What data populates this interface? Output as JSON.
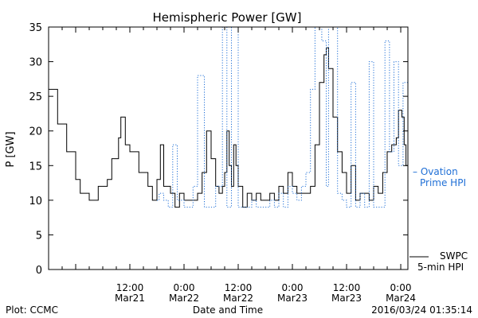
{
  "colors": {
    "swpc": "#000000",
    "ovation": "#1f6fd6",
    "axis": "#000000"
  },
  "footer": {
    "left": "Plot: CCMC",
    "center": "Date and Time",
    "right": "2016/03/24 01:35:14"
  },
  "chart_data": {
    "type": "line",
    "title": "Hemispheric Power [GW]",
    "ylabel": "P [GW]",
    "xlabel": "Date and Time",
    "xlim": [
      "2016-03-20T18:00",
      "2016-03-24T01:35"
    ],
    "ylim": [
      0,
      35
    ],
    "y_ticks": [
      0,
      5,
      10,
      15,
      20,
      25,
      30,
      35
    ],
    "x_tick_labels": [
      {
        "x": "2016-03-21T12:00",
        "line1": "12:00",
        "line2": "Mar21"
      },
      {
        "x": "2016-03-22T00:00",
        "line1": "0:00",
        "line2": "Mar22"
      },
      {
        "x": "2016-03-22T12:00",
        "line1": "12:00",
        "line2": "Mar22"
      },
      {
        "x": "2016-03-23T00:00",
        "line1": "0:00",
        "line2": "Mar23"
      },
      {
        "x": "2016-03-23T12:00",
        "line1": "12:00",
        "line2": "Mar23"
      },
      {
        "x": "2016-03-24T00:00",
        "line1": "0:00",
        "line2": "Mar24"
      }
    ],
    "series": [
      {
        "name": "SWPC 5-min HPI",
        "label_lines": [
          "SWPC",
          "5-min HPI"
        ],
        "style": "solid",
        "points": [
          [
            "2016-03-20T18:00",
            26
          ],
          [
            "2016-03-20T20:00",
            21
          ],
          [
            "2016-03-20T22:00",
            17
          ],
          [
            "2016-03-21T00:00",
            13
          ],
          [
            "2016-03-21T01:00",
            11
          ],
          [
            "2016-03-21T03:00",
            10
          ],
          [
            "2016-03-21T05:00",
            12
          ],
          [
            "2016-03-21T07:00",
            13
          ],
          [
            "2016-03-21T08:00",
            16
          ],
          [
            "2016-03-21T09:30",
            19
          ],
          [
            "2016-03-21T10:00",
            22
          ],
          [
            "2016-03-21T11:00",
            18
          ],
          [
            "2016-03-21T12:00",
            17
          ],
          [
            "2016-03-21T14:00",
            14
          ],
          [
            "2016-03-21T16:00",
            12
          ],
          [
            "2016-03-21T17:00",
            10
          ],
          [
            "2016-03-21T18:00",
            13
          ],
          [
            "2016-03-21T18:45",
            18
          ],
          [
            "2016-03-21T19:30",
            12
          ],
          [
            "2016-03-21T21:00",
            11
          ],
          [
            "2016-03-21T22:00",
            9
          ],
          [
            "2016-03-21T23:00",
            11
          ],
          [
            "2016-03-22T00:00",
            10
          ],
          [
            "2016-03-22T01:00",
            10
          ],
          [
            "2016-03-22T02:00",
            10
          ],
          [
            "2016-03-22T03:00",
            11
          ],
          [
            "2016-03-22T04:00",
            14
          ],
          [
            "2016-03-22T05:00",
            20
          ],
          [
            "2016-03-22T06:00",
            16
          ],
          [
            "2016-03-22T07:00",
            12
          ],
          [
            "2016-03-22T07:45",
            11
          ],
          [
            "2016-03-22T08:30",
            12
          ],
          [
            "2016-03-22T09:00",
            14
          ],
          [
            "2016-03-22T09:30",
            20
          ],
          [
            "2016-03-22T10:00",
            15
          ],
          [
            "2016-03-22T10:30",
            12
          ],
          [
            "2016-03-22T11:00",
            18
          ],
          [
            "2016-03-22T11:30",
            15
          ],
          [
            "2016-03-22T12:00",
            12
          ],
          [
            "2016-03-22T13:00",
            9
          ],
          [
            "2016-03-22T14:00",
            11
          ],
          [
            "2016-03-22T15:00",
            10
          ],
          [
            "2016-03-22T16:00",
            11
          ],
          [
            "2016-03-22T17:00",
            10
          ],
          [
            "2016-03-22T19:00",
            11
          ],
          [
            "2016-03-22T20:00",
            10
          ],
          [
            "2016-03-22T21:00",
            12
          ],
          [
            "2016-03-22T22:00",
            11
          ],
          [
            "2016-03-22T23:00",
            14
          ],
          [
            "2016-03-23T00:00",
            12
          ],
          [
            "2016-03-23T01:00",
            11
          ],
          [
            "2016-03-23T02:00",
            11
          ],
          [
            "2016-03-23T03:00",
            11
          ],
          [
            "2016-03-23T04:00",
            12
          ],
          [
            "2016-03-23T05:00",
            18
          ],
          [
            "2016-03-23T06:00",
            27
          ],
          [
            "2016-03-23T07:00",
            31
          ],
          [
            "2016-03-23T07:30",
            32
          ],
          [
            "2016-03-23T08:00",
            29
          ],
          [
            "2016-03-23T09:00",
            22
          ],
          [
            "2016-03-23T10:00",
            17
          ],
          [
            "2016-03-23T11:00",
            14
          ],
          [
            "2016-03-23T12:00",
            11
          ],
          [
            "2016-03-23T13:00",
            15
          ],
          [
            "2016-03-23T14:00",
            10
          ],
          [
            "2016-03-23T15:00",
            11
          ],
          [
            "2016-03-23T16:00",
            11
          ],
          [
            "2016-03-23T17:00",
            10
          ],
          [
            "2016-03-23T18:00",
            12
          ],
          [
            "2016-03-23T19:00",
            11
          ],
          [
            "2016-03-23T20:00",
            14
          ],
          [
            "2016-03-23T21:00",
            17
          ],
          [
            "2016-03-23T22:00",
            18
          ],
          [
            "2016-03-23T23:00",
            19
          ],
          [
            "2016-03-23T23:30",
            23
          ],
          [
            "2016-03-24T00:15",
            22
          ],
          [
            "2016-03-24T00:45",
            18
          ],
          [
            "2016-03-24T01:10",
            15
          ],
          [
            "2016-03-24T01:35",
            16
          ]
        ]
      },
      {
        "name": "Ovation Prime HPI",
        "label_lines": [
          "– Ovation",
          "Prime HPI"
        ],
        "style": "dotted",
        "points": [
          [
            "2016-03-21T18:00",
            10
          ],
          [
            "2016-03-21T18:30",
            11
          ],
          [
            "2016-03-21T19:30",
            10
          ],
          [
            "2016-03-21T20:30",
            9
          ],
          [
            "2016-03-21T21:30",
            18
          ],
          [
            "2016-03-21T22:30",
            10
          ],
          [
            "2016-03-22T00:00",
            9
          ],
          [
            "2016-03-22T01:00",
            9
          ],
          [
            "2016-03-22T02:00",
            12
          ],
          [
            "2016-03-22T03:00",
            28
          ],
          [
            "2016-03-22T04:30",
            9
          ],
          [
            "2016-03-22T06:00",
            9
          ],
          [
            "2016-03-22T07:00",
            12
          ],
          [
            "2016-03-22T08:30",
            35
          ],
          [
            "2016-03-22T09:30",
            9
          ],
          [
            "2016-03-22T10:30",
            35
          ],
          [
            "2016-03-22T11:15",
            35
          ],
          [
            "2016-03-22T12:00",
            9
          ],
          [
            "2016-03-22T14:00",
            9
          ],
          [
            "2016-03-22T15:00",
            10
          ],
          [
            "2016-03-22T16:00",
            9
          ],
          [
            "2016-03-22T18:00",
            9
          ],
          [
            "2016-03-22T19:00",
            10
          ],
          [
            "2016-03-22T20:00",
            9
          ],
          [
            "2016-03-22T21:00",
            11
          ],
          [
            "2016-03-22T22:00",
            9
          ],
          [
            "2016-03-22T23:00",
            12
          ],
          [
            "2016-03-23T00:00",
            11
          ],
          [
            "2016-03-23T01:00",
            10
          ],
          [
            "2016-03-23T02:00",
            12
          ],
          [
            "2016-03-23T03:00",
            14
          ],
          [
            "2016-03-23T04:00",
            26
          ],
          [
            "2016-03-23T05:00",
            35
          ],
          [
            "2016-03-23T06:30",
            33
          ],
          [
            "2016-03-23T07:30",
            12
          ],
          [
            "2016-03-23T08:00",
            35
          ],
          [
            "2016-03-23T09:00",
            35
          ],
          [
            "2016-03-23T10:00",
            11
          ],
          [
            "2016-03-23T11:00",
            10
          ],
          [
            "2016-03-23T12:00",
            9
          ],
          [
            "2016-03-23T13:00",
            27
          ],
          [
            "2016-03-23T14:00",
            9
          ],
          [
            "2016-03-23T15:00",
            11
          ],
          [
            "2016-03-23T16:00",
            9
          ],
          [
            "2016-03-23T17:00",
            30
          ],
          [
            "2016-03-23T18:00",
            9
          ],
          [
            "2016-03-23T19:00",
            9
          ],
          [
            "2016-03-23T20:00",
            9
          ],
          [
            "2016-03-23T20:30",
            33
          ],
          [
            "2016-03-23T21:30",
            17
          ],
          [
            "2016-03-23T22:30",
            30
          ],
          [
            "2016-03-23T23:30",
            15
          ],
          [
            "2016-03-24T00:30",
            27
          ],
          [
            "2016-03-24T01:35",
            22
          ]
        ]
      }
    ]
  }
}
